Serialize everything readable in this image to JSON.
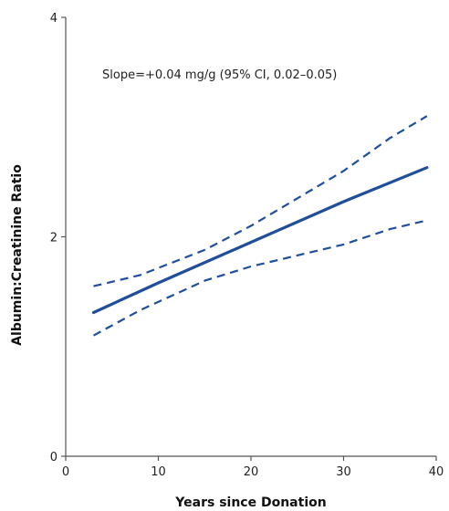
{
  "chart_data": {
    "type": "line",
    "title": "",
    "xlabel": "Years since Donation",
    "ylabel": "Albumin:Creatinine Ratio",
    "xlim": [
      0,
      40
    ],
    "ylim": [
      0,
      4
    ],
    "xticks": [
      0,
      10,
      20,
      30,
      40
    ],
    "yticks": [
      0,
      2,
      4
    ],
    "grid": false,
    "legend": "none",
    "annotation": "Slope=+0.04 mg/g (95% CI, 0.02–0.05)",
    "colors": {
      "line": "#1f4f9a",
      "axis": "#555555"
    },
    "series": [
      {
        "role": "estimate",
        "style": "solid",
        "x": [
          3,
          10,
          20,
          30,
          39
        ],
        "y": [
          1.31,
          1.58,
          1.95,
          2.32,
          2.63
        ]
      },
      {
        "role": "upper-ci",
        "style": "dashed",
        "x": [
          3,
          8,
          15,
          20,
          25,
          30,
          35,
          39
        ],
        "y": [
          1.55,
          1.65,
          1.88,
          2.1,
          2.35,
          2.6,
          2.9,
          3.1
        ]
      },
      {
        "role": "lower-ci",
        "style": "dashed",
        "x": [
          3,
          8,
          15,
          20,
          25,
          30,
          35,
          39
        ],
        "y": [
          1.1,
          1.33,
          1.6,
          1.73,
          1.83,
          1.93,
          2.07,
          2.15
        ]
      }
    ]
  }
}
